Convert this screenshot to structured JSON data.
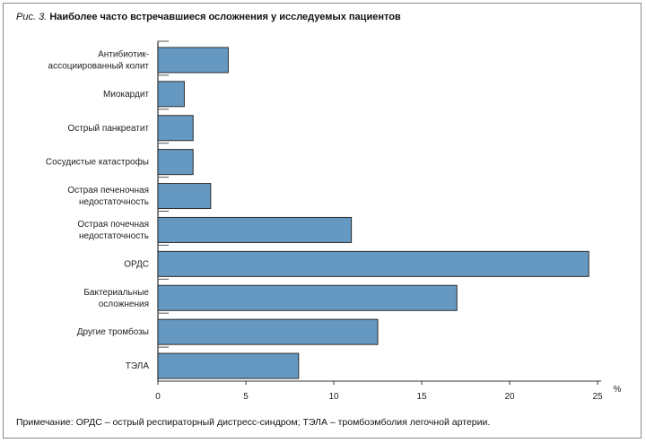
{
  "figure_label": "Рис. 3.",
  "chart_data": {
    "type": "bar",
    "orientation": "horizontal",
    "title": "Наиболее часто встречавшиеся осложнения у исследуемых пациентов",
    "categories": [
      [
        "Антибиотик-",
        "ассоциированный колит"
      ],
      [
        "Миокардит"
      ],
      [
        "Острый панкреатит"
      ],
      [
        "Сосудистые катастрофы"
      ],
      [
        "Острая печеночная",
        "недостаточность"
      ],
      [
        "Острая почечная",
        "недостаточность"
      ],
      [
        "ОРДС"
      ],
      [
        "Бактериальные",
        "осложнения"
      ],
      [
        "Другие тромбозы"
      ],
      [
        "ТЭЛА"
      ]
    ],
    "values": [
      4,
      1.5,
      2,
      2,
      3,
      11,
      24.5,
      17,
      12.5,
      8
    ],
    "xlabel": "%",
    "ylabel": "",
    "xlim": [
      0,
      25
    ],
    "xticks": [
      0,
      5,
      10,
      15,
      20,
      25
    ],
    "grid": false,
    "bar_color": "#6699c2",
    "bar_edge": "#2b2b2b"
  },
  "note": "Примечание: ОРДС – острый респираторный дистресс-синдром; ТЭЛА – тромбоэмболия легочной артерии."
}
